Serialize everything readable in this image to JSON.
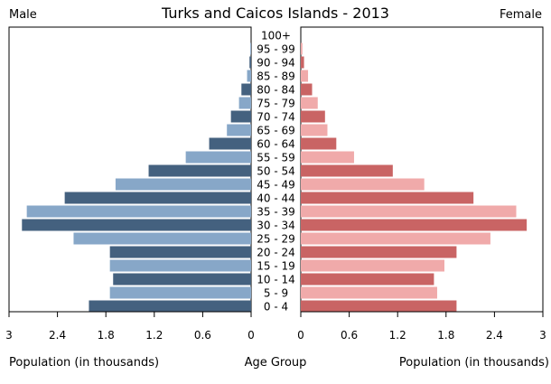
{
  "chart_data": {
    "type": "bar",
    "title": "Turks and Caicos Islands - 2013",
    "left_label": "Male",
    "right_label": "Female",
    "xlabel_left": "Population (in thousands)",
    "xlabel_center": "Age Group",
    "xlabel_right": "Population (in thousands)",
    "xlim": [
      0,
      3
    ],
    "x_ticks": [
      "0",
      "0.6",
      "1.2",
      "1.8",
      "2.4",
      "3"
    ],
    "categories": [
      "100+",
      "95 - 99",
      "90 - 94",
      "85 - 89",
      "80 - 84",
      "75 - 79",
      "70 - 74",
      "65 - 69",
      "60 - 64",
      "55 - 59",
      "50 - 54",
      "45 - 49",
      "40 - 44",
      "35 - 39",
      "30 - 34",
      "25 - 29",
      "20 - 24",
      "15 - 19",
      "10 - 14",
      "5 - 9",
      "0 - 4"
    ],
    "series": [
      {
        "name": "Male",
        "values": [
          0.0,
          0.01,
          0.02,
          0.05,
          0.12,
          0.15,
          0.25,
          0.3,
          0.52,
          0.81,
          1.27,
          1.68,
          2.31,
          2.78,
          2.84,
          2.2,
          1.75,
          1.75,
          1.71,
          1.75,
          2.01
        ]
      },
      {
        "name": "Female",
        "values": [
          0.0,
          0.02,
          0.04,
          0.09,
          0.14,
          0.21,
          0.3,
          0.33,
          0.44,
          0.66,
          1.14,
          1.53,
          2.14,
          2.67,
          2.8,
          2.35,
          1.93,
          1.78,
          1.65,
          1.69,
          1.93
        ]
      }
    ],
    "colors": {
      "male_dark": "#44617f",
      "male_light": "#87a7c8",
      "female_dark": "#c96464",
      "female_light": "#f0aaaa"
    },
    "grid": false
  }
}
